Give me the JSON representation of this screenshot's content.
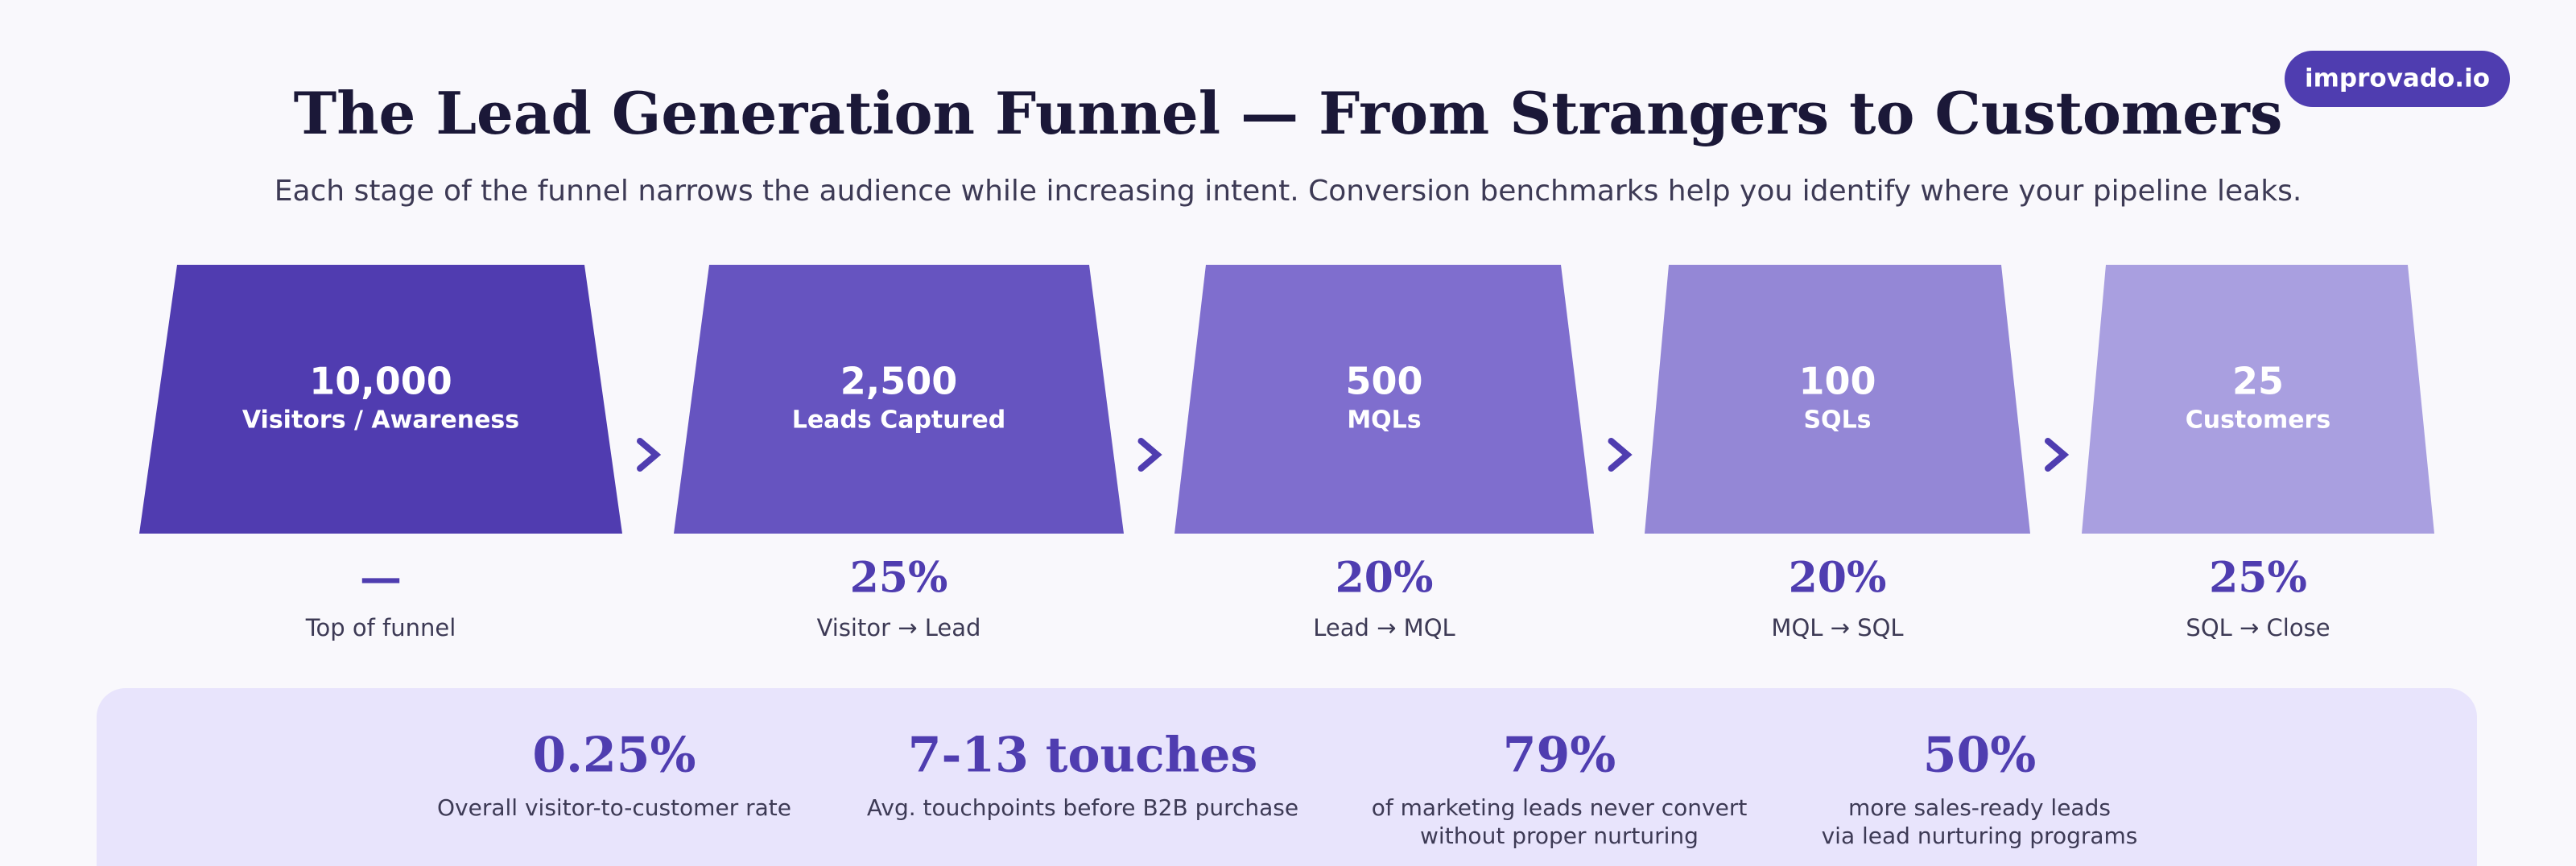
{
  "header": {
    "title": "The Lead Generation Funnel — From Strangers to Customers",
    "subtitle": "Each stage of the funnel narrows the audience while increasing intent. Conversion benchmarks help you identify where your pipeline leaks.",
    "badge": "improvado.io"
  },
  "stages": [
    {
      "value": "10,000",
      "label": "Visitors / Awareness",
      "rate": "—",
      "rate_label": "Top of funnel"
    },
    {
      "value": "2,500",
      "label": "Leads Captured",
      "rate": "25%",
      "rate_label": "Visitor → Lead"
    },
    {
      "value": "500",
      "label": "MQLs",
      "rate": "20%",
      "rate_label": "Lead → MQL"
    },
    {
      "value": "100",
      "label": "SQLs",
      "rate": "20%",
      "rate_label": "MQL → SQL"
    },
    {
      "value": "25",
      "label": "Customers",
      "rate": "25%",
      "rate_label": "SQL → Close"
    }
  ],
  "stats": [
    {
      "value": "0.25%",
      "lines": [
        "Overall visitor-to-customer rate"
      ]
    },
    {
      "value": "7-13 touches",
      "lines": [
        "Avg. touchpoints before B2B purchase"
      ]
    },
    {
      "value": "79%",
      "lines": [
        "of marketing leads never convert",
        "without proper nurturing"
      ]
    },
    {
      "value": "50%",
      "lines": [
        "more sales-ready leads",
        "via lead nurturing programs"
      ]
    }
  ]
}
